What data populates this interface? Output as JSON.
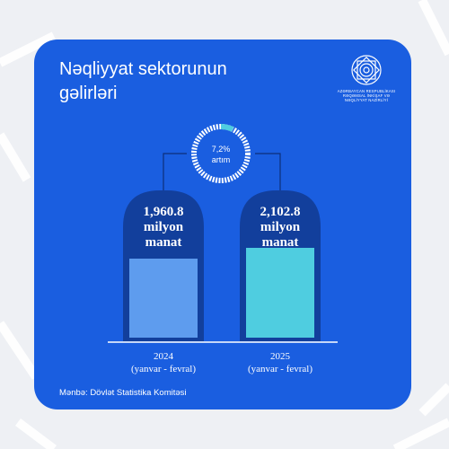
{
  "title": "Nəqliyyat sektorunun gəlirləri",
  "logo": {
    "icon": "ornamental-rosette-icon",
    "lines": [
      "AZƏRBAYCAN RESPUBLİKASI",
      "RƏQƏMSAL İNKİŞAF VƏ",
      "NƏQLİYYAT NAZİRLİYİ"
    ]
  },
  "source": "Mənbə: Dövlət Statistika Komitəsi",
  "colors": {
    "card": "#1a5ee0",
    "bar_2024": "#5e9cee",
    "bar_2025": "#4fcde0",
    "pillar": "#123f9c",
    "ring_track": "#ffffff",
    "ring_fill": "#4fcde0"
  },
  "chart_data": {
    "type": "bar",
    "categories": [
      "2024\n(yanvar - fevral)",
      "2025\n(yanvar - fevral)"
    ],
    "values": [
      1960.8,
      2102.8
    ],
    "value_labels": [
      "1,960.8\nmilyon\nmanat",
      "2,102.8\nmilyon\nmanat"
    ],
    "category_labels": [
      {
        "year": "2024",
        "period": "(yanvar - fevral)"
      },
      {
        "year": "2025",
        "period": "(yanvar - fevral)"
      }
    ],
    "growth": {
      "value": 7.2,
      "label_value": "7,2%",
      "label_text": "artım"
    },
    "title": "Nəqliyyat sektorunun gəlirləri",
    "xlabel": "",
    "ylabel": ""
  }
}
